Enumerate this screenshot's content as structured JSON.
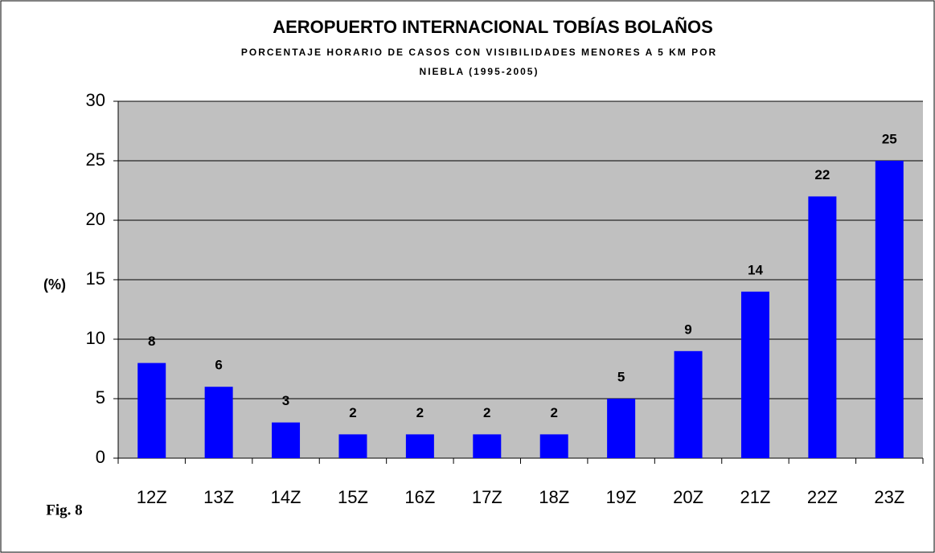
{
  "chart_data": {
    "type": "bar",
    "title": "AEROPUERTO INTERNACIONAL TOBÍAS BOLAÑOS",
    "subtitle": [
      "PORCENTAJE HORARIO DE CASOS CON VISIBILIDADES MENORES A 5 KM POR",
      "NIEBLA (1995-2005)"
    ],
    "y_label": "(%)",
    "annotation": "Fig. 8",
    "categories": [
      "12Z",
      "13Z",
      "14Z",
      "15Z",
      "16Z",
      "17Z",
      "18Z",
      "19Z",
      "20Z",
      "21Z",
      "22Z",
      "23Z"
    ],
    "values": [
      8,
      6,
      3,
      2,
      2,
      2,
      2,
      5,
      9,
      14,
      22,
      25
    ],
    "color": "#0000ff",
    "ylim": [
      0,
      30
    ],
    "yticks": [
      0,
      5,
      10,
      15,
      20,
      25,
      30
    ],
    "grid": true
  }
}
